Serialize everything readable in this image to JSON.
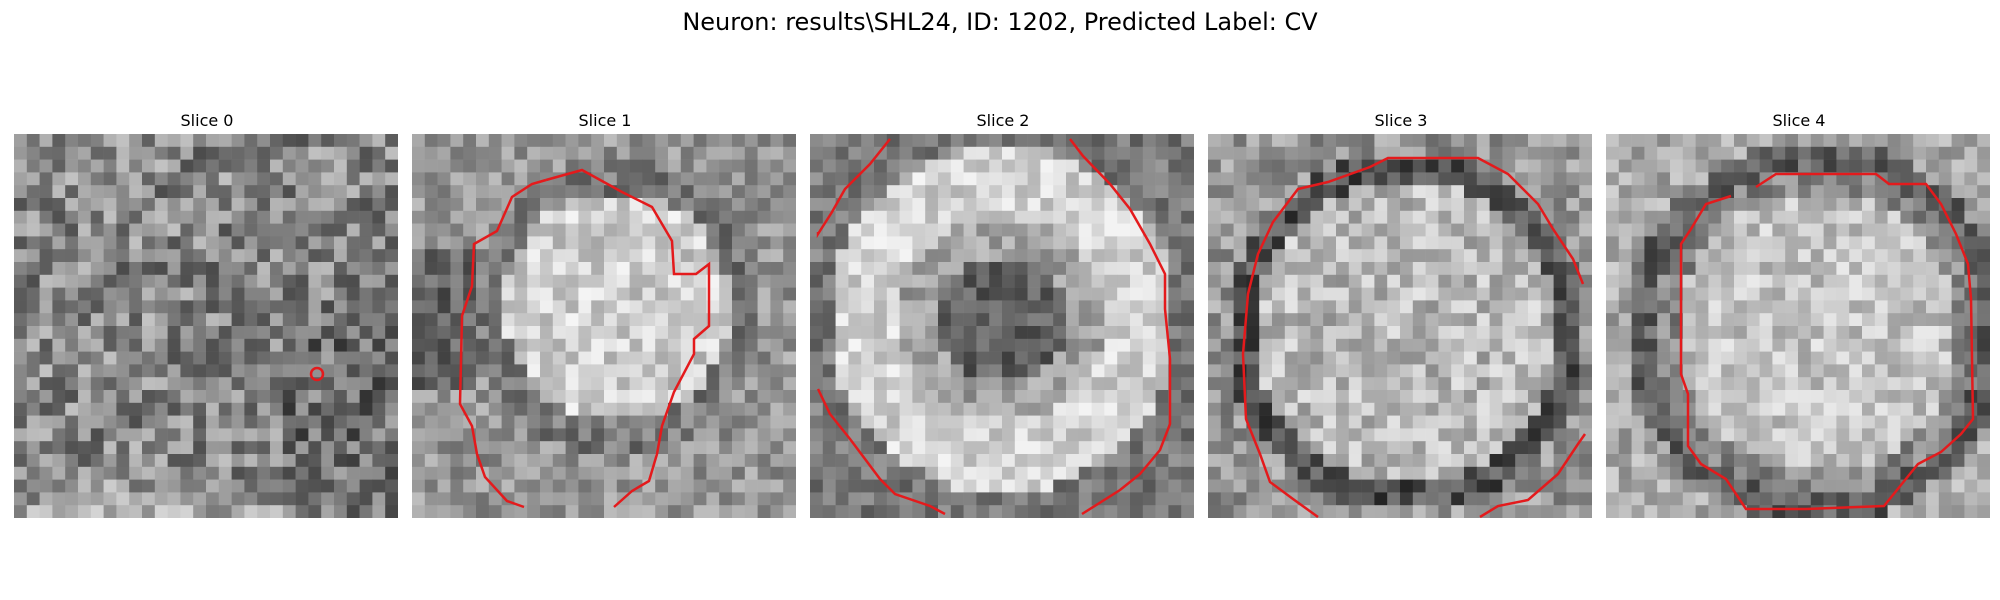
{
  "figure": {
    "title": "Neuron: results\\SHL24, ID: 1202, Predicted Label: CV",
    "contour_color": "#e41a1c",
    "colormap": "gray"
  },
  "panels": [
    {
      "title": "Slice 0",
      "pattern": "noise-dark"
    },
    {
      "title": "Slice 1",
      "pattern": "blob"
    },
    {
      "title": "Slice 2",
      "pattern": "ring"
    },
    {
      "title": "Slice 3",
      "pattern": "disk"
    },
    {
      "title": "Slice 4",
      "pattern": "disk-large"
    }
  ]
}
